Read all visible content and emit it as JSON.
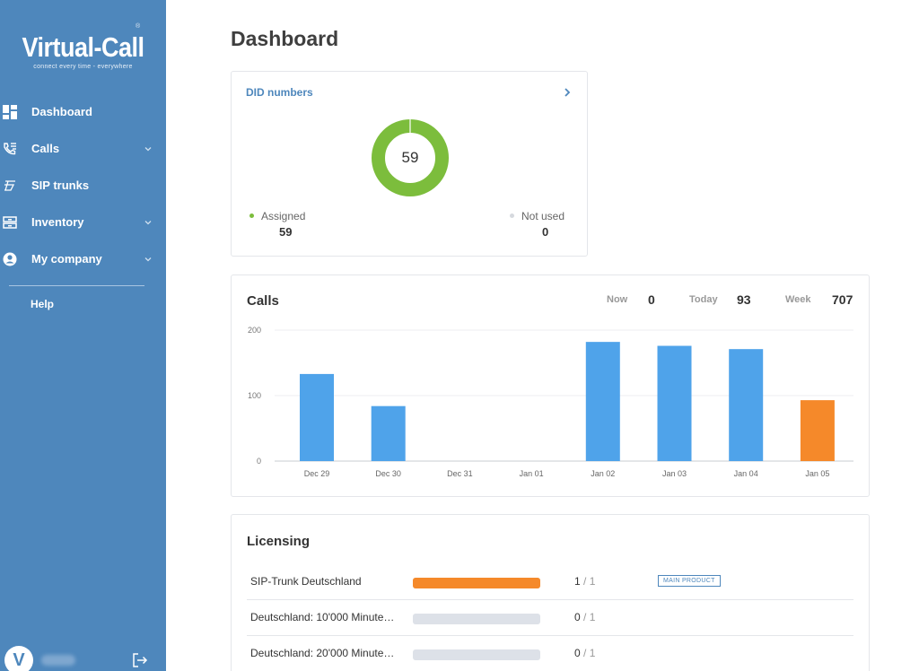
{
  "sidebar": {
    "logo_title": "Virtual-Call",
    "logo_tagline": "connect every time - everywhere",
    "logo_reg": "®",
    "items": [
      {
        "label": "Dashboard",
        "icon": "dashboard-icon"
      },
      {
        "label": "Calls",
        "icon": "phone-list-icon"
      },
      {
        "label": "SIP trunks",
        "icon": "sip-trunk-icon"
      },
      {
        "label": "Inventory",
        "icon": "inventory-icon"
      },
      {
        "label": "My company",
        "icon": "account-icon"
      }
    ],
    "help_label": "Help",
    "avatar_letter": "V"
  },
  "page": {
    "title": "Dashboard"
  },
  "did": {
    "title": "DID numbers",
    "total": "59",
    "assigned_label": "Assigned",
    "assigned_value": "59",
    "not_used_label": "Not used",
    "not_used_value": "0",
    "colors": {
      "assigned": "#7cbd3c",
      "not_used": "#d6d9de"
    }
  },
  "calls": {
    "title": "Calls",
    "now_label": "Now",
    "now_value": "0",
    "today_label": "Today",
    "today_value": "93",
    "week_label": "Week",
    "week_value": "707"
  },
  "chart_data": {
    "type": "bar",
    "categories": [
      "Dec 29",
      "Dec 30",
      "Dec 31",
      "Jan 01",
      "Jan 02",
      "Jan 03",
      "Jan 04",
      "Jan 05"
    ],
    "values": [
      133,
      84,
      0,
      0,
      182,
      176,
      171,
      93
    ],
    "yticks": [
      0,
      100,
      200
    ],
    "ylim": [
      0,
      200
    ],
    "grid": true,
    "colors": {
      "default": "#4fa3ea",
      "highlight": "#f5892a"
    },
    "highlight_index": 7
  },
  "licensing": {
    "title": "Licensing",
    "rows": [
      {
        "name": "SIP-Trunk Deutschland",
        "used": "1",
        "total": "/ 1",
        "fraction": 1.0,
        "badge": "MAIN PRODUCT"
      },
      {
        "name": "Deutschland: 10'000 Minute…",
        "used": "0",
        "total": "/ 1",
        "fraction": 0.0,
        "badge": ""
      },
      {
        "name": "Deutschland: 20'000 Minute…",
        "used": "0",
        "total": "/ 1",
        "fraction": 0.0,
        "badge": ""
      }
    ]
  }
}
